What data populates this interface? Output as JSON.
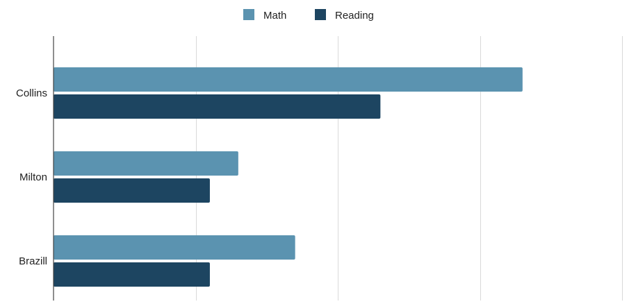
{
  "chart_data": {
    "type": "bar",
    "orientation": "horizontal",
    "categories": [
      "Collins",
      "Milton",
      "Brazill"
    ],
    "series": [
      {
        "name": "Math",
        "color": "#5b93b0",
        "values": [
          33,
          13,
          17
        ]
      },
      {
        "name": "Reading",
        "color": "#1d4561",
        "values": [
          23,
          11,
          11
        ]
      }
    ],
    "xlim": [
      0,
      40
    ],
    "x_ticks": [
      0,
      10,
      20,
      30,
      40
    ],
    "x_tick_labels_shown": false,
    "grid": true,
    "legend": "top-center",
    "title": "",
    "xlabel": "",
    "ylabel": ""
  }
}
